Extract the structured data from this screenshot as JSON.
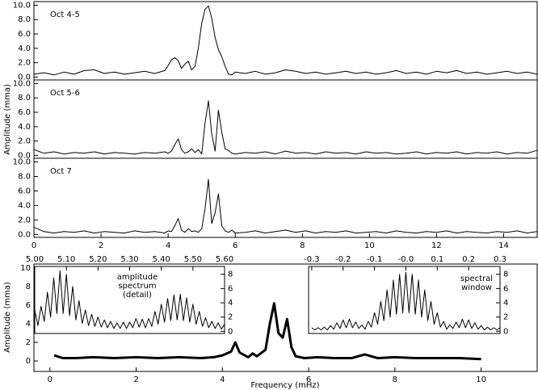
{
  "chart_data": [
    {
      "type": "line",
      "label": "Oct 4-5",
      "color": "#000000",
      "xlim": [
        0,
        15
      ],
      "ylim": [
        -0.4,
        10.5
      ],
      "yticks": [
        {
          "value": 0,
          "label": "0.0"
        },
        {
          "value": 2,
          "label": "2.0"
        },
        {
          "value": 4,
          "label": "4.0"
        },
        {
          "value": 6,
          "label": "6.0"
        },
        {
          "value": 8,
          "label": "8.0"
        },
        {
          "value": 10,
          "label": "10.0"
        }
      ],
      "x": [
        0,
        0.3,
        0.6,
        0.9,
        1.2,
        1.5,
        1.8,
        2.1,
        2.4,
        2.7,
        3.0,
        3.3,
        3.6,
        3.9,
        4.0,
        4.1,
        4.2,
        4.3,
        4.4,
        4.5,
        4.6,
        4.7,
        4.8,
        4.9,
        5.0,
        5.1,
        5.2,
        5.3,
        5.4,
        5.5,
        5.6,
        5.7,
        5.8,
        5.9,
        6.0,
        6.3,
        6.6,
        6.9,
        7.2,
        7.5,
        7.8,
        8.1,
        8.4,
        8.7,
        9.0,
        9.3,
        9.6,
        9.9,
        10.2,
        10.5,
        10.8,
        11.1,
        11.4,
        11.7,
        12.0,
        12.3,
        12.6,
        12.9,
        13.2,
        13.5,
        13.8,
        14.1,
        14.4,
        14.7,
        15.0
      ],
      "values": [
        0.4,
        0.6,
        0.3,
        0.7,
        0.4,
        0.9,
        1.0,
        0.5,
        0.7,
        0.4,
        0.6,
        0.8,
        0.5,
        0.9,
        1.6,
        2.4,
        2.7,
        2.3,
        1.2,
        1.8,
        2.2,
        1.0,
        1.5,
        4.0,
        7.5,
        9.4,
        9.9,
        8.2,
        5.5,
        3.8,
        2.8,
        1.5,
        0.4,
        0.3,
        0.7,
        0.5,
        0.8,
        0.4,
        0.6,
        1.0,
        0.8,
        0.5,
        0.7,
        0.4,
        0.6,
        0.8,
        0.5,
        0.7,
        0.4,
        0.6,
        0.9,
        0.5,
        0.7,
        0.4,
        0.8,
        0.6,
        0.9,
        0.5,
        0.7,
        0.4,
        0.6,
        0.8,
        0.5,
        0.7,
        0.4
      ]
    },
    {
      "type": "line",
      "label": "Oct 5-6",
      "ylabel": "Amplitude (mma)",
      "color": "#000000",
      "xlim": [
        0,
        15
      ],
      "ylim": [
        -0.4,
        10.5
      ],
      "yticks": [
        {
          "value": 0,
          "label": "0.0"
        },
        {
          "value": 2,
          "label": "2.0"
        },
        {
          "value": 4,
          "label": "4.0"
        },
        {
          "value": 6,
          "label": "6.0"
        },
        {
          "value": 8,
          "label": "8.0"
        },
        {
          "value": 10,
          "label": "10.0"
        }
      ],
      "x": [
        0,
        0.3,
        0.6,
        0.9,
        1.2,
        1.5,
        1.8,
        2.1,
        2.4,
        2.7,
        3.0,
        3.3,
        3.6,
        3.9,
        4.0,
        4.1,
        4.2,
        4.3,
        4.4,
        4.5,
        4.6,
        4.7,
        4.8,
        4.9,
        5.0,
        5.1,
        5.2,
        5.3,
        5.4,
        5.5,
        5.6,
        5.7,
        5.8,
        5.9,
        6.0,
        6.3,
        6.6,
        6.9,
        7.2,
        7.5,
        7.8,
        8.1,
        8.4,
        8.7,
        9.0,
        9.3,
        9.6,
        9.9,
        10.2,
        10.5,
        10.8,
        11.1,
        11.4,
        11.7,
        12.0,
        12.3,
        12.6,
        12.9,
        13.2,
        13.5,
        13.8,
        14.1,
        14.4,
        14.7,
        15.0
      ],
      "values": [
        0.8,
        0.3,
        0.5,
        0.2,
        0.4,
        0.3,
        0.5,
        0.2,
        0.4,
        0.3,
        0.2,
        0.4,
        0.3,
        0.5,
        0.3,
        0.6,
        1.5,
        2.3,
        0.8,
        0.3,
        0.5,
        0.9,
        0.4,
        0.8,
        0.2,
        4.5,
        7.6,
        3.0,
        0.6,
        6.3,
        3.2,
        0.9,
        0.7,
        0.3,
        0.2,
        0.4,
        0.3,
        0.5,
        0.2,
        0.6,
        0.3,
        0.4,
        0.2,
        0.5,
        0.3,
        0.4,
        0.2,
        0.5,
        0.3,
        0.4,
        0.2,
        0.3,
        0.5,
        0.2,
        0.4,
        0.3,
        0.5,
        0.2,
        0.4,
        0.3,
        0.5,
        0.2,
        0.4,
        0.3,
        0.7
      ]
    },
    {
      "type": "line",
      "label": "Oct 7",
      "color": "#000000",
      "xlim": [
        0,
        15
      ],
      "ylim": [
        -0.4,
        10.5
      ],
      "xticks": [
        0,
        2,
        4,
        6,
        8,
        10,
        12,
        14
      ],
      "yticks": [
        {
          "value": 0,
          "label": "0.0"
        },
        {
          "value": 2,
          "label": "2.0"
        },
        {
          "value": 4,
          "label": "4.0"
        },
        {
          "value": 6,
          "label": "6.0"
        },
        {
          "value": 8,
          "label": "8.0"
        },
        {
          "value": 10,
          "label": "10.0"
        }
      ],
      "x": [
        0,
        0.3,
        0.6,
        0.9,
        1.2,
        1.5,
        1.8,
        2.1,
        2.4,
        2.7,
        3.0,
        3.3,
        3.6,
        3.9,
        4.0,
        4.1,
        4.2,
        4.3,
        4.4,
        4.5,
        4.6,
        4.7,
        4.8,
        4.9,
        5.0,
        5.1,
        5.2,
        5.3,
        5.4,
        5.5,
        5.6,
        5.7,
        5.8,
        5.9,
        6.0,
        6.3,
        6.6,
        6.9,
        7.2,
        7.5,
        7.8,
        8.1,
        8.4,
        8.7,
        9.0,
        9.3,
        9.6,
        9.9,
        10.2,
        10.5,
        10.8,
        11.1,
        11.4,
        11.7,
        12.0,
        12.3,
        12.6,
        12.9,
        13.2,
        13.5,
        13.8,
        14.1,
        14.4,
        14.7,
        15.0
      ],
      "values": [
        1.0,
        0.4,
        0.2,
        0.4,
        0.3,
        0.5,
        0.2,
        0.4,
        0.3,
        0.2,
        0.5,
        0.3,
        0.4,
        0.2,
        0.5,
        0.4,
        1.2,
        2.2,
        0.6,
        0.3,
        0.8,
        0.4,
        0.5,
        0.3,
        0.8,
        3.5,
        7.6,
        1.5,
        3.0,
        5.6,
        1.2,
        0.5,
        0.3,
        0.6,
        0.2,
        0.3,
        0.5,
        0.2,
        0.4,
        0.6,
        0.3,
        0.5,
        0.2,
        0.4,
        0.3,
        0.5,
        0.2,
        0.3,
        0.4,
        0.2,
        0.5,
        0.3,
        0.2,
        0.4,
        0.3,
        0.5,
        0.2,
        0.4,
        0.3,
        0.2,
        0.4,
        0.3,
        0.5,
        0.2,
        0.4
      ]
    },
    {
      "type": "line",
      "xlabel": "Frequency (mHz)",
      "ylabel": "Amplitude (mma)",
      "color": "#000000",
      "xlim": [
        -0.37,
        11.3
      ],
      "ylim": [
        -1.13,
        10.43
      ],
      "xticks": [
        0,
        2,
        4,
        6,
        8,
        10
      ],
      "yticks": [
        0,
        2,
        4,
        6,
        8,
        10
      ],
      "x": [
        0.1,
        0.3,
        0.6,
        1.0,
        1.5,
        2.0,
        2.5,
        3.0,
        3.5,
        3.8,
        4.0,
        4.2,
        4.3,
        4.4,
        4.6,
        4.7,
        4.8,
        5.0,
        5.1,
        5.2,
        5.3,
        5.4,
        5.5,
        5.6,
        5.7,
        5.9,
        6.2,
        6.6,
        7.0,
        7.3,
        7.6,
        8.0,
        8.5,
        9.0,
        9.5,
        10.0
      ],
      "values": [
        0.6,
        0.3,
        0.3,
        0.4,
        0.3,
        0.4,
        0.3,
        0.4,
        0.3,
        0.4,
        0.6,
        1.0,
        2.0,
        0.9,
        0.4,
        0.8,
        0.5,
        1.2,
        4.0,
        6.2,
        3.0,
        2.5,
        4.5,
        1.5,
        0.5,
        0.3,
        0.4,
        0.3,
        0.3,
        0.7,
        0.3,
        0.4,
        0.3,
        0.3,
        0.3,
        0.2
      ]
    },
    {
      "type": "line",
      "annotation": [
        "amplitude",
        "spectrum",
        "(detail)"
      ],
      "color": "#000000",
      "xaxis_position": "top",
      "yaxis_position": "right",
      "xlim": [
        5.0,
        5.6
      ],
      "ylim": [
        -0.3,
        9.1
      ],
      "xticks": [
        {
          "value": 5.0,
          "label": "5.00"
        },
        {
          "value": 5.1,
          "label": "5.10"
        },
        {
          "value": 5.2,
          "label": "5.20"
        },
        {
          "value": 5.3,
          "label": "5.30"
        },
        {
          "value": 5.4,
          "label": "5.40"
        },
        {
          "value": 5.5,
          "label": "5.50"
        },
        {
          "value": 5.6,
          "label": "5.60"
        }
      ],
      "yticks": [
        0,
        2,
        4,
        6,
        8
      ],
      "x": [
        5.0,
        5.01,
        5.02,
        5.03,
        5.04,
        5.05,
        5.06,
        5.07,
        5.08,
        5.09,
        5.1,
        5.11,
        5.12,
        5.13,
        5.14,
        5.15,
        5.16,
        5.17,
        5.18,
        5.19,
        5.2,
        5.21,
        5.22,
        5.23,
        5.24,
        5.25,
        5.26,
        5.27,
        5.28,
        5.29,
        5.3,
        5.31,
        5.32,
        5.33,
        5.34,
        5.35,
        5.36,
        5.37,
        5.38,
        5.39,
        5.4,
        5.41,
        5.42,
        5.43,
        5.44,
        5.45,
        5.46,
        5.47,
        5.48,
        5.49,
        5.5,
        5.51,
        5.52,
        5.53,
        5.54,
        5.55,
        5.56,
        5.57,
        5.58,
        5.59,
        5.6
      ],
      "values": [
        3.0,
        0.8,
        3.5,
        1.4,
        5.5,
        2.0,
        7.5,
        2.5,
        8.5,
        2.5,
        8.0,
        2.2,
        6.3,
        1.6,
        4.3,
        1.1,
        3.0,
        0.8,
        2.4,
        0.7,
        2.0,
        0.6,
        1.6,
        0.5,
        1.4,
        0.4,
        1.2,
        0.4,
        1.3,
        0.4,
        1.3,
        0.5,
        1.8,
        0.6,
        1.7,
        0.5,
        1.8,
        0.7,
        2.8,
        1.0,
        3.8,
        1.3,
        4.6,
        1.5,
        5.1,
        1.6,
        5.2,
        1.5,
        4.7,
        1.3,
        3.8,
        1.0,
        2.8,
        0.7,
        1.9,
        0.5,
        1.4,
        0.4,
        1.2,
        0.3,
        1.0
      ]
    },
    {
      "type": "line",
      "annotation": [
        "spectral",
        "window"
      ],
      "color": "#000000",
      "xaxis_position": "top",
      "yaxis_position": "right",
      "xlim": [
        -0.31,
        0.3
      ],
      "ylim": [
        -0.3,
        9.1
      ],
      "xticks": [
        {
          "value": -0.3,
          "label": "-0.3"
        },
        {
          "value": -0.2,
          "label": "-0.2"
        },
        {
          "value": -0.1,
          "label": "-0.1"
        },
        {
          "value": 0,
          "label": "-0.0"
        },
        0.1,
        0.2,
        0.3
      ],
      "yticks": [
        0,
        2,
        4,
        6,
        8
      ],
      "x": [
        -0.3,
        -0.29,
        -0.28,
        -0.27,
        -0.26,
        -0.25,
        -0.24,
        -0.23,
        -0.22,
        -0.21,
        -0.2,
        -0.19,
        -0.18,
        -0.17,
        -0.16,
        -0.15,
        -0.14,
        -0.13,
        -0.12,
        -0.11,
        -0.1,
        -0.09,
        -0.08,
        -0.07,
        -0.06,
        -0.05,
        -0.04,
        -0.03,
        -0.02,
        -0.01,
        0,
        0.01,
        0.02,
        0.03,
        0.04,
        0.05,
        0.06,
        0.07,
        0.08,
        0.09,
        0.1,
        0.11,
        0.12,
        0.13,
        0.14,
        0.15,
        0.16,
        0.17,
        0.18,
        0.19,
        0.2,
        0.21,
        0.22,
        0.23,
        0.24,
        0.25,
        0.26,
        0.27,
        0.28,
        0.29,
        0.3
      ],
      "values": [
        0.5,
        0.2,
        0.5,
        0.2,
        0.6,
        0.2,
        0.8,
        0.3,
        1.2,
        0.4,
        1.6,
        0.5,
        1.7,
        0.5,
        1.3,
        0.4,
        0.9,
        0.3,
        1.4,
        0.6,
        2.6,
        1.0,
        4.2,
        1.5,
        5.8,
        2.0,
        7.2,
        2.4,
        8.0,
        2.6,
        8.3,
        2.6,
        8.0,
        2.4,
        7.2,
        2.0,
        5.8,
        1.5,
        4.2,
        1.0,
        2.6,
        0.6,
        1.4,
        0.3,
        0.9,
        0.4,
        1.3,
        0.5,
        1.7,
        0.5,
        1.6,
        0.4,
        1.2,
        0.3,
        0.8,
        0.2,
        0.6,
        0.2,
        0.5,
        0.2,
        0.5
      ]
    }
  ]
}
